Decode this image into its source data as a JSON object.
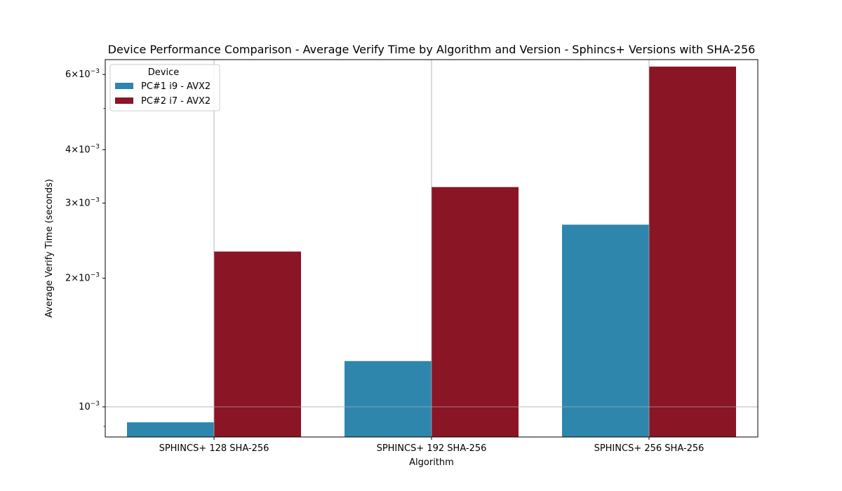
{
  "chart_data": {
    "type": "bar",
    "title": "Device Performance Comparison - Average Verify Time by Algorithm and Version - Sphincs+ Versions with SHA-256",
    "xlabel": "Algorithm",
    "ylabel": "Average Verify Time (seconds)",
    "y_scale": "log",
    "ylim": [
      0.00085,
      0.0065
    ],
    "categories": [
      "SPHINCS+ 128 SHA-256",
      "SPHINCS+ 192 SHA-256",
      "SPHINCS+ 256 SHA-256"
    ],
    "series": [
      {
        "name": "PC#1 i9 - AVX2",
        "color": "#2e86ad",
        "values": [
          0.00092,
          0.00128,
          0.00267
        ]
      },
      {
        "name": "PC#2 i7 - AVX2",
        "color": "#8a1524",
        "values": [
          0.00231,
          0.00327,
          0.00626
        ]
      }
    ],
    "y_major_ticks": [
      {
        "value": 0.001,
        "base": "10",
        "exp": "−3"
      },
      {
        "value": 0.002,
        "base": "2×10",
        "exp": "−3"
      },
      {
        "value": 0.003,
        "base": "3×10",
        "exp": "−3"
      },
      {
        "value": 0.004,
        "base": "4×10",
        "exp": "−3"
      },
      {
        "value": 0.006,
        "base": "6×10",
        "exp": "−3"
      }
    ],
    "y_minor_ticks": [
      0.0009,
      0.005
    ],
    "grid": true,
    "legend": {
      "title": "Device",
      "position": "top-left"
    }
  }
}
